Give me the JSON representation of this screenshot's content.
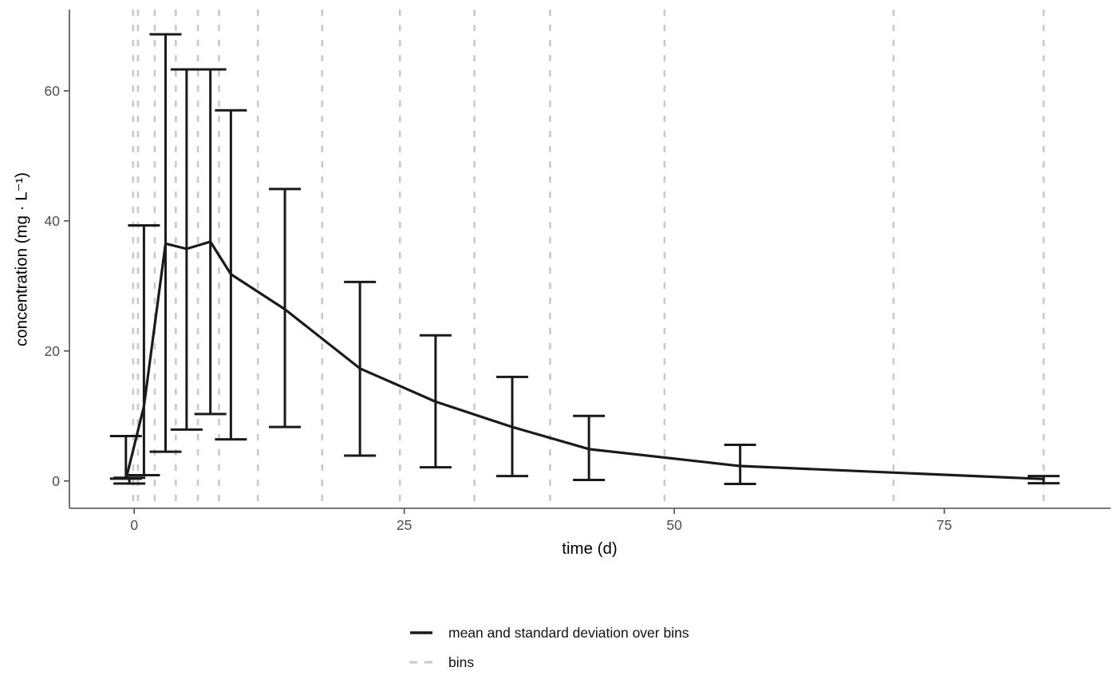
{
  "chart_data": {
    "type": "line",
    "title": "",
    "xlabel": "time (d)",
    "ylabel": "concentration (mg · L⁻¹)",
    "x_ticks": [
      0,
      25,
      50,
      75
    ],
    "y_ticks": [
      0,
      20,
      40,
      60
    ],
    "xlim": [
      -6.0,
      90.4
    ],
    "ylim": [
      -4.2,
      72.5
    ],
    "grid": "off",
    "legend_position": "bottom",
    "bin_edges": [
      -0.1,
      0.35,
      1.9,
      3.85,
      5.9,
      7.85,
      11.45,
      17.4,
      24.6,
      31.5,
      38.5,
      49.1,
      70.3,
      84.2
    ],
    "mean_line": [
      [
        -0.75,
        0.35
      ],
      [
        0.9,
        11.5
      ],
      [
        2.9,
        36.5
      ],
      [
        4.85,
        35.7
      ],
      [
        7.05,
        36.8
      ],
      [
        8.95,
        31.8
      ],
      [
        13.95,
        26.4
      ],
      [
        20.9,
        17.3
      ],
      [
        27.9,
        12.2
      ],
      [
        35.0,
        8.3
      ],
      [
        42.1,
        4.9
      ],
      [
        56.1,
        2.3
      ],
      [
        84.2,
        0.3
      ]
    ],
    "error_bars": [
      {
        "t": -0.77,
        "lo": 0.35,
        "hi": 6.9
      },
      {
        "t": -0.45,
        "lo": -0.4,
        "hi": 0.5
      },
      {
        "t": 0.9,
        "lo": 0.9,
        "hi": 39.3
      },
      {
        "t": 2.9,
        "lo": 4.5,
        "hi": 68.7
      },
      {
        "t": 4.85,
        "lo": 7.9,
        "hi": 63.3
      },
      {
        "t": 7.05,
        "lo": 10.3,
        "hi": 63.3
      },
      {
        "t": 8.95,
        "lo": 6.4,
        "hi": 57.0
      },
      {
        "t": 13.95,
        "lo": 8.3,
        "hi": 44.9
      },
      {
        "t": 20.9,
        "lo": 3.9,
        "hi": 30.6
      },
      {
        "t": 27.9,
        "lo": 2.1,
        "hi": 22.4
      },
      {
        "t": 35.0,
        "lo": 0.75,
        "hi": 16.0
      },
      {
        "t": 42.1,
        "lo": 0.15,
        "hi": 10.0
      },
      {
        "t": 56.1,
        "lo": -0.45,
        "hi": 5.55
      },
      {
        "t": 84.2,
        "lo": -0.35,
        "hi": 0.75
      }
    ],
    "legend": [
      {
        "label": "mean and standard deviation over bins",
        "style": "solid"
      },
      {
        "label": "bins",
        "style": "dashed"
      }
    ],
    "colors": {
      "mean_line": "#1a1a1a",
      "bins": "#c9c9c9",
      "axis": "#4d4d4d",
      "tick_label": "#4d4d4d",
      "title": "#000000"
    }
  }
}
